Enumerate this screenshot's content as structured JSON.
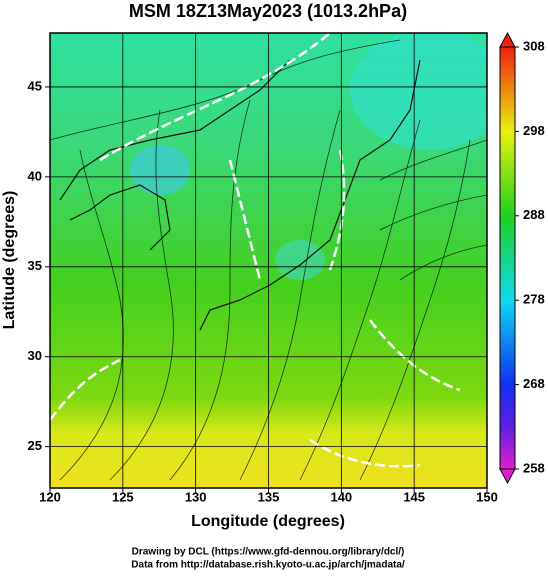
{
  "chart_data": {
    "type": "map",
    "title": "MSM 18Z13May2023 (1013.2hPa)",
    "xlabel": "Longitude (degrees)",
    "ylabel": "Latitude  (degrees)",
    "xlim": [
      120,
      150
    ],
    "xticks": [
      120,
      125,
      130,
      135,
      140,
      145,
      150
    ],
    "ylim": [
      22.7,
      48
    ],
    "yticks": [
      25,
      30,
      35,
      40,
      45
    ],
    "grid": true,
    "colorbar": {
      "lim": [
        258,
        308
      ],
      "ticks": [
        258,
        268,
        278,
        288,
        298,
        308
      ]
    },
    "credits": [
      "Drawing by DCL (https://www.gfd-dennou.org/library/dcl/)",
      "Data from http://database.rish.kyoto-u.ac.jp/arch/jmadata/"
    ]
  }
}
